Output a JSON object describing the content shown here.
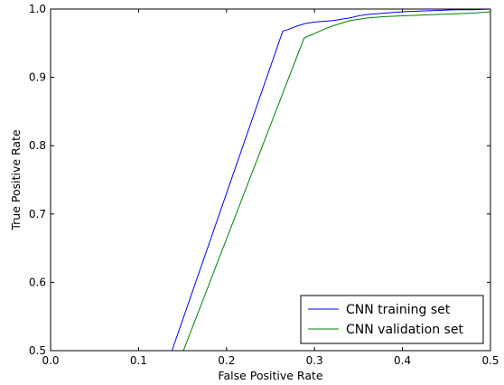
{
  "chart_data": {
    "type": "line",
    "title": "",
    "xlabel": "False Positive Rate",
    "ylabel": "True Positive Rate",
    "xlim": [
      0.0,
      0.5
    ],
    "ylim": [
      0.5,
      1.0
    ],
    "xticks": [
      0.0,
      0.1,
      0.2,
      0.3,
      0.4,
      0.5
    ],
    "xtick_labels": [
      "0.0",
      "0.1",
      "0.2",
      "0.3",
      "0.4",
      "0.5"
    ],
    "yticks": [
      0.5,
      0.6,
      0.7,
      0.8,
      0.9,
      1.0
    ],
    "ytick_labels": [
      "0.5",
      "0.6",
      "0.7",
      "0.8",
      "0.9",
      "1.0"
    ],
    "grid": false,
    "legend_position": "bottom-right",
    "series": [
      {
        "name": "CNN training set",
        "color": "#0000ff",
        "x": [
          0.138,
          0.264,
          0.268,
          0.27,
          0.272,
          0.276,
          0.28,
          0.285,
          0.29,
          0.295,
          0.3,
          0.31,
          0.32,
          0.33,
          0.34,
          0.35,
          0.36,
          0.38,
          0.4,
          0.42,
          0.44,
          0.46,
          0.48,
          0.5
        ],
        "y": [
          0.5,
          0.968,
          0.969,
          0.97,
          0.971,
          0.973,
          0.975,
          0.977,
          0.979,
          0.98,
          0.981,
          0.982,
          0.983,
          0.985,
          0.987,
          0.99,
          0.992,
          0.994,
          0.996,
          0.997,
          0.998,
          0.999,
          0.999,
          1.0
        ]
      },
      {
        "name": "CNN validation set",
        "color": "#008000",
        "x": [
          0.151,
          0.288,
          0.292,
          0.296,
          0.3,
          0.305,
          0.31,
          0.32,
          0.33,
          0.34,
          0.35,
          0.36,
          0.37,
          0.38,
          0.4,
          0.42,
          0.44,
          0.46,
          0.48,
          0.5
        ],
        "y": [
          0.5,
          0.957,
          0.96,
          0.962,
          0.964,
          0.967,
          0.97,
          0.975,
          0.979,
          0.983,
          0.985,
          0.987,
          0.988,
          0.989,
          0.99,
          0.991,
          0.992,
          0.993,
          0.994,
          0.996
        ]
      }
    ]
  }
}
